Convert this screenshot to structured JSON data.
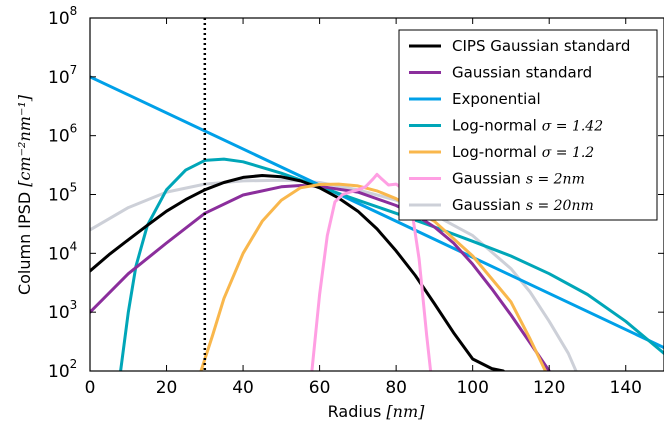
{
  "chart_data": {
    "type": "line",
    "title": "",
    "xlabel": "Radius",
    "xlabel_unit": "[nm]",
    "ylabel": "Column IPSD",
    "ylabel_unit": "[cm⁻²nm⁻¹]",
    "xlim": [
      0,
      150
    ],
    "ylim": [
      100,
      100000000
    ],
    "yscale": "log",
    "x_ticks": [
      "0",
      "20",
      "40",
      "60",
      "80",
      "100",
      "120",
      "140"
    ],
    "y_ticks": [
      {
        "base": "10",
        "exp": "2"
      },
      {
        "base": "10",
        "exp": "3"
      },
      {
        "base": "10",
        "exp": "4"
      },
      {
        "base": "10",
        "exp": "5"
      },
      {
        "base": "10",
        "exp": "6"
      },
      {
        "base": "10",
        "exp": "7"
      },
      {
        "base": "10",
        "exp": "8"
      }
    ],
    "grid": false,
    "legend_position": "top-right",
    "vline": {
      "x": 30,
      "style": "dotted",
      "color": "#000000"
    },
    "series": [
      {
        "name": "CIPS Gaussian standard",
        "name_math": "",
        "color": "#000000",
        "x": [
          0,
          5,
          10,
          15,
          20,
          25,
          30,
          35,
          40,
          45,
          50,
          55,
          60,
          65,
          70,
          75,
          80,
          85,
          90,
          95,
          100,
          105,
          108
        ],
        "y": [
          5000,
          9500,
          17000,
          30000,
          52000,
          82000,
          120000,
          160000,
          195000,
          210000,
          200000,
          170000,
          130000,
          87000,
          52000,
          26000,
          11000,
          4200,
          1400,
          450,
          160,
          110,
          100
        ]
      },
      {
        "name": "Gaussian standard",
        "name_math": "",
        "color": "#8B2E9C",
        "x": [
          0,
          10,
          20,
          30,
          40,
          50,
          55,
          60,
          70,
          80,
          85,
          90,
          95,
          100,
          105,
          110,
          115,
          120
        ],
        "y": [
          1000,
          4500,
          15000,
          48000,
          98000,
          135000,
          142000,
          138000,
          110000,
          65000,
          45000,
          28000,
          15000,
          6500,
          2500,
          900,
          300,
          100
        ]
      },
      {
        "name": "Exponential",
        "name_math": "",
        "color": "#00A0E8",
        "x": [
          0,
          150
        ],
        "y": [
          10000000,
          250
        ]
      },
      {
        "name": "Log-normal",
        "name_math": "σ = 1.42",
        "color": "#00A6B8",
        "x": [
          8,
          10,
          12,
          15,
          20,
          25,
          30,
          35,
          40,
          50,
          60,
          70,
          80,
          90,
          100,
          110,
          120,
          130,
          140,
          150
        ],
        "y": [
          100,
          1000,
          6000,
          30000,
          120000,
          260000,
          380000,
          400000,
          360000,
          230000,
          135000,
          80000,
          48000,
          28000,
          16000,
          9000,
          4500,
          2000,
          700,
          200
        ]
      },
      {
        "name": "Log-normal",
        "name_math": "σ = 1.2",
        "color": "#F9B74C",
        "x": [
          29,
          32,
          35,
          40,
          45,
          50,
          55,
          60,
          65,
          70,
          75,
          80,
          90,
          100,
          110,
          115,
          119
        ],
        "y": [
          100,
          400,
          1700,
          10000,
          35000,
          80000,
          130000,
          148000,
          150000,
          140000,
          115000,
          85000,
          35000,
          9000,
          1500,
          350,
          100
        ]
      },
      {
        "name": "Gaussian",
        "name_math": "s = 2nm",
        "color": "#FF9FE3",
        "x": [
          58,
          60,
          62,
          64,
          66,
          68,
          70,
          72,
          74,
          75,
          76,
          78,
          80,
          82,
          84,
          86,
          88,
          89
        ],
        "y": [
          100,
          2000,
          20000,
          75000,
          100000,
          110000,
          120000,
          135000,
          185000,
          220000,
          190000,
          145000,
          150000,
          120000,
          60000,
          8000,
          400,
          100
        ]
      },
      {
        "name": "Gaussian",
        "name_math": "s = 20nm",
        "color": "#CDD0D8",
        "x": [
          0,
          10,
          20,
          30,
          40,
          50,
          55,
          60,
          70,
          80,
          90,
          100,
          110,
          115,
          120,
          125,
          127
        ],
        "y": [
          25000,
          60000,
          110000,
          150000,
          170000,
          175000,
          170000,
          160000,
          120000,
          80000,
          45000,
          20000,
          5500,
          2200,
          700,
          200,
          100
        ]
      }
    ]
  }
}
